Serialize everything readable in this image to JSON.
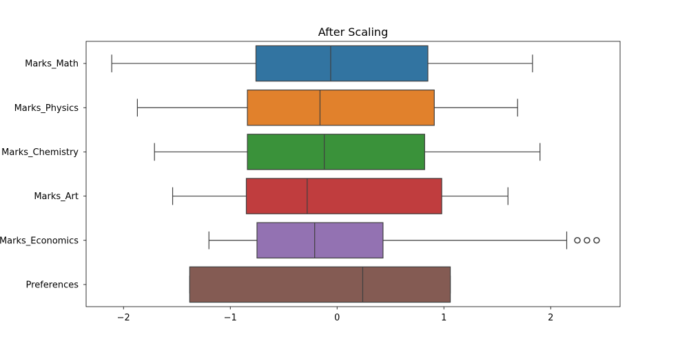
{
  "chart_data": {
    "type": "boxplot",
    "orientation": "horizontal",
    "title": "After Scaling",
    "xlabel": "",
    "ylabel": "",
    "xlim": [
      -2.35,
      2.65
    ],
    "xticks": [
      -2,
      -1,
      0,
      1,
      2
    ],
    "xtick_labels": [
      "−2",
      "−1",
      "0",
      "1",
      "2"
    ],
    "grid": false,
    "categories": [
      "Marks_Math",
      "Marks_Physics",
      "Marks_Chemistry",
      "Marks_Art",
      "Marks_Economics",
      "Preferences"
    ],
    "boxes": [
      {
        "label": "Marks_Math",
        "whisker_low": -2.11,
        "q1": -0.76,
        "median": -0.06,
        "q3": 0.85,
        "whisker_high": 1.83,
        "outliers": [],
        "color": "#3274a1"
      },
      {
        "label": "Marks_Physics",
        "whisker_low": -1.87,
        "q1": -0.84,
        "median": -0.16,
        "q3": 0.91,
        "whisker_high": 1.69,
        "outliers": [],
        "color": "#e1812c"
      },
      {
        "label": "Marks_Chemistry",
        "whisker_low": -1.71,
        "q1": -0.84,
        "median": -0.12,
        "q3": 0.82,
        "whisker_high": 1.9,
        "outliers": [],
        "color": "#3a923a"
      },
      {
        "label": "Marks_Art",
        "whisker_low": -1.54,
        "q1": -0.85,
        "median": -0.28,
        "q3": 0.98,
        "whisker_high": 1.6,
        "outliers": [],
        "color": "#c03d3e"
      },
      {
        "label": "Marks_Economics",
        "whisker_low": -1.2,
        "q1": -0.75,
        "median": -0.21,
        "q3": 0.43,
        "whisker_high": 2.15,
        "outliers": [
          2.25,
          2.34,
          2.43
        ],
        "color": "#9372b2"
      },
      {
        "label": "Preferences",
        "whisker_low": -1.38,
        "q1": -1.38,
        "median": 0.24,
        "q3": 1.06,
        "whisker_high": 1.06,
        "outliers": [],
        "color": "#845b53"
      }
    ]
  }
}
